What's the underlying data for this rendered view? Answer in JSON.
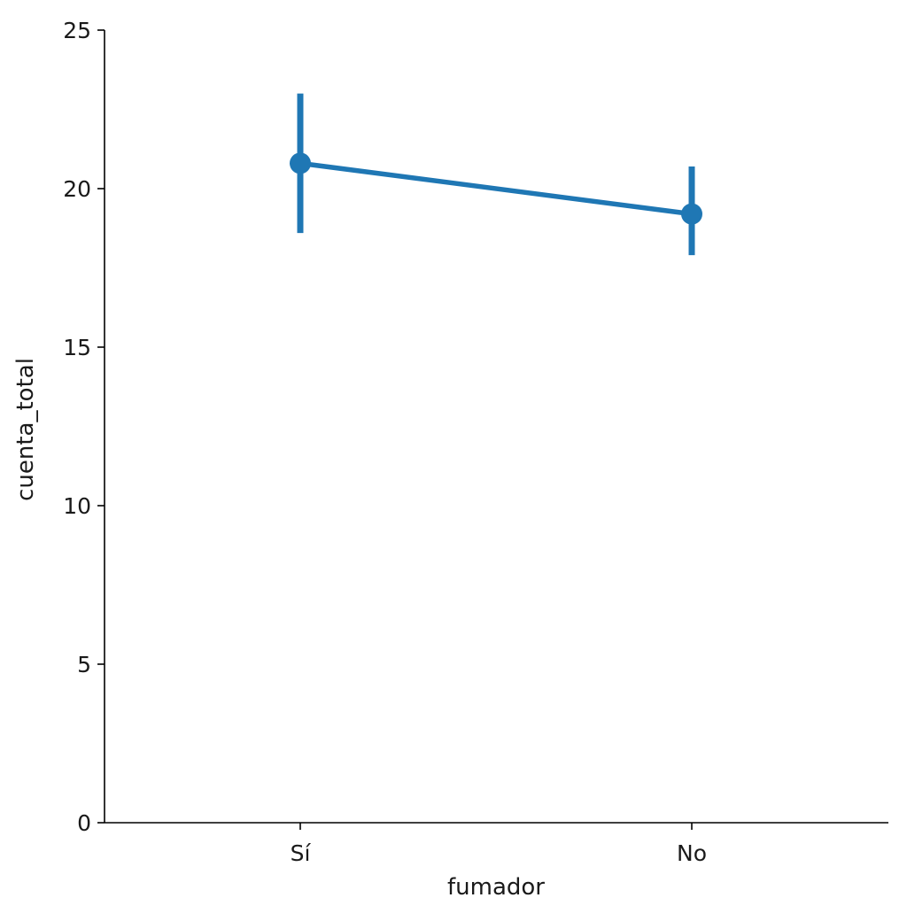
{
  "chart_data": {
    "type": "line",
    "categories": [
      "Sí",
      "No"
    ],
    "values": [
      20.8,
      19.2
    ],
    "error_bars": [
      {
        "low": 18.6,
        "high": 23.0
      },
      {
        "low": 17.9,
        "high": 20.7
      }
    ],
    "xlabel": "fumador",
    "ylabel": "cuenta_total",
    "ylim": [
      0,
      25
    ],
    "yticks": [
      0,
      5,
      10,
      15,
      20,
      25
    ],
    "grid": false,
    "colors": {
      "series": "#1f77b4",
      "axis": "#000000",
      "text": "#1a1a1a"
    }
  }
}
